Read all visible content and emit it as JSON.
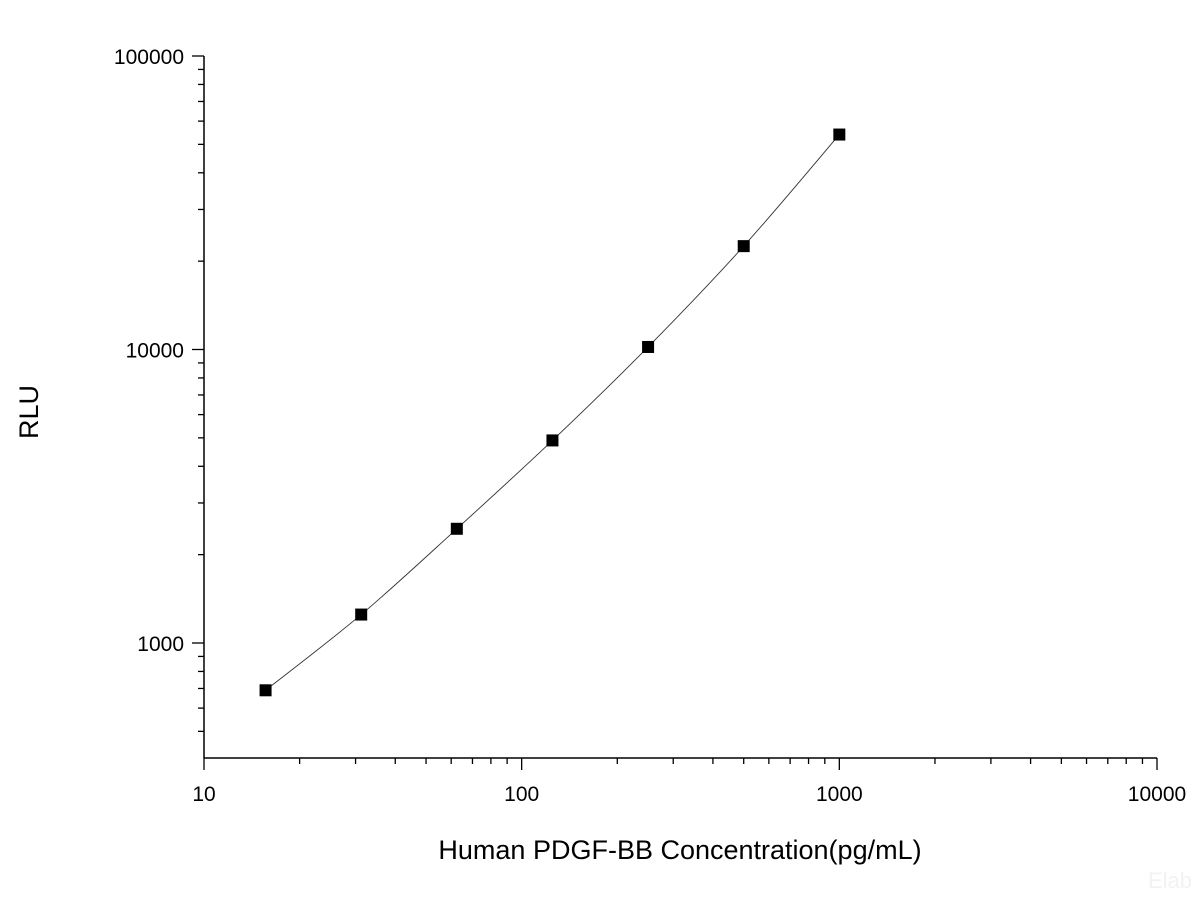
{
  "chart_data": {
    "type": "scatter",
    "xlabel": "Human PDGF-BB Concentration(pg/mL)",
    "ylabel": "RLU",
    "xscale": "log",
    "yscale": "log",
    "xlim": [
      10,
      10000
    ],
    "ylim": [
      420,
      100000
    ],
    "xticks": [
      10,
      100,
      1000,
      10000
    ],
    "xtick_labels": [
      "10",
      "100",
      "1000",
      "10000"
    ],
    "yticks": [
      1000,
      10000,
      100000
    ],
    "ytick_labels": [
      "1000",
      "10000",
      "100000"
    ],
    "grid": false,
    "series": [
      {
        "marker": "square",
        "line": "fit-curve",
        "color": "#000000",
        "x": [
          15.625,
          31.25,
          62.5,
          125,
          250,
          500,
          1000
        ],
        "y": [
          690,
          1250,
          2450,
          4900,
          10200,
          22500,
          54000
        ]
      }
    ],
    "watermark": "Elab"
  }
}
